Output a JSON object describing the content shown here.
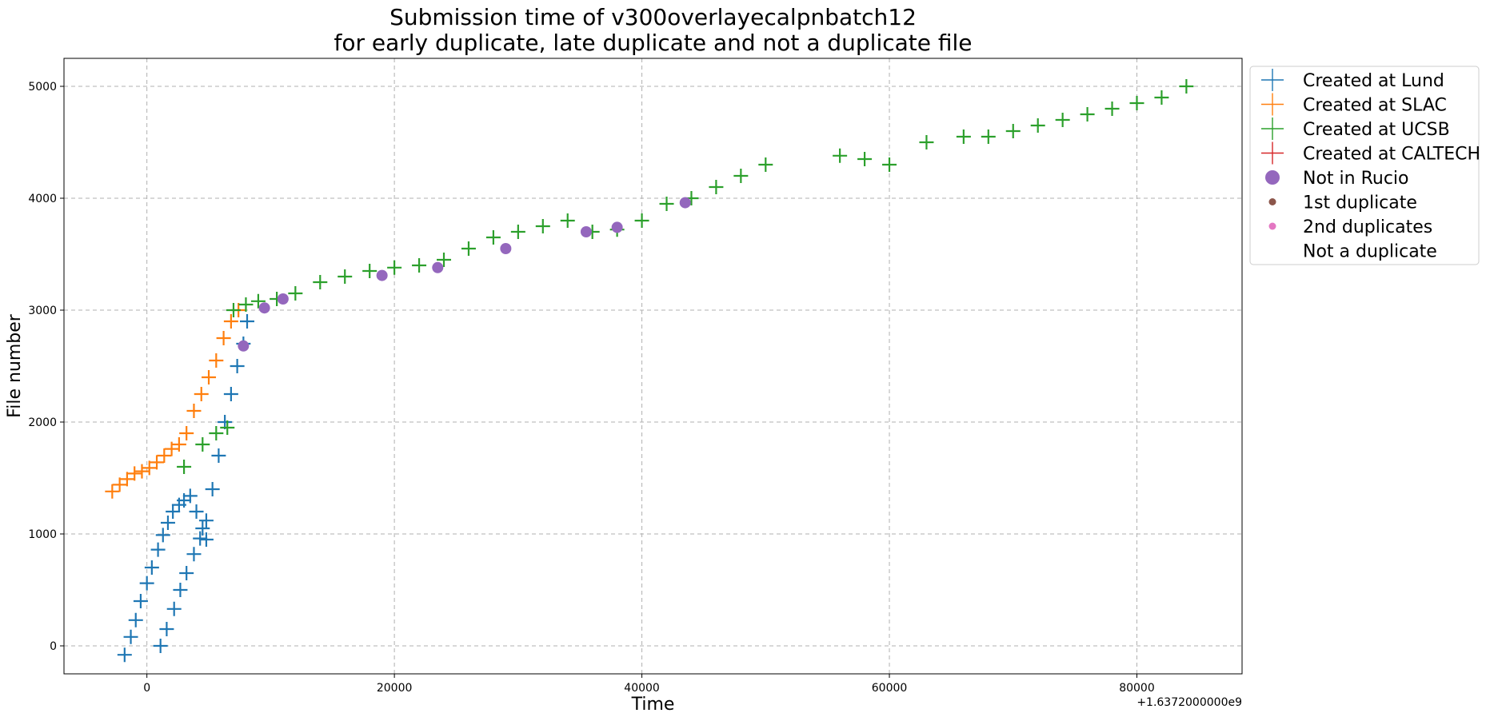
{
  "chart_data": {
    "type": "scatter",
    "title_lines": [
      "Submission time of v300overlayecalpnbatch12",
      "for early duplicate, late duplicate and not a duplicate file"
    ],
    "xlabel": "Time",
    "ylabel": "File number",
    "x_offset_label": "+1.6372000000e9",
    "xlim": [
      -6700,
      88500
    ],
    "ylim": [
      -250,
      5250
    ],
    "x_ticks": [
      0,
      20000,
      40000,
      60000,
      80000
    ],
    "y_ticks": [
      0,
      1000,
      2000,
      3000,
      4000,
      5000
    ],
    "grid": true,
    "legend_position": "outside-top-right",
    "legend": [
      {
        "label": "Created at Lund",
        "marker": "plus",
        "color": "#1f77b4"
      },
      {
        "label": "Created at SLAC",
        "marker": "plus",
        "color": "#ff7f0e"
      },
      {
        "label": "Created at UCSB",
        "marker": "plus",
        "color": "#2ca02c"
      },
      {
        "label": "Created at CALTECH",
        "marker": "plus",
        "color": "#d62728"
      },
      {
        "label": "Not in Rucio",
        "marker": "circle-large",
        "color": "#9467bd"
      },
      {
        "label": "1st duplicate",
        "marker": "circle-small",
        "color": "#8c564b"
      },
      {
        "label": "2nd duplicates",
        "marker": "circle-small",
        "color": "#e377c2"
      },
      {
        "label": "Not a duplicate",
        "marker": "none",
        "color": "#ffffff"
      }
    ],
    "series": [
      {
        "name": "Created at Lund",
        "color": "#1f77b4",
        "x": [
          -1800,
          -1300,
          -900,
          -500,
          0,
          400,
          900,
          1300,
          1700,
          2100,
          2600,
          3000,
          3500,
          4000,
          4500,
          4800,
          1100,
          1600,
          2200,
          2700,
          3200,
          3800,
          4300,
          4800,
          5300,
          5800,
          6300,
          6800,
          7300,
          7800,
          8100
        ],
        "y": [
          -80,
          80,
          230,
          400,
          560,
          700,
          860,
          990,
          1100,
          1200,
          1260,
          1300,
          1340,
          1200,
          1050,
          950,
          0,
          150,
          330,
          500,
          650,
          820,
          960,
          1120,
          1400,
          1700,
          2000,
          2250,
          2500,
          2700,
          2900
        ]
      },
      {
        "name": "Created at SLAC",
        "color": "#ff7f0e",
        "x": [
          -2800,
          -2200,
          -1600,
          -1000,
          -400,
          200,
          800,
          1400,
          2000,
          2600,
          3200,
          3800,
          4400,
          5000,
          5600,
          6200,
          6800,
          7400
        ],
        "y": [
          1380,
          1440,
          1490,
          1540,
          1560,
          1590,
          1640,
          1700,
          1760,
          1800,
          1900,
          2100,
          2250,
          2400,
          2550,
          2750,
          2900,
          3000
        ]
      },
      {
        "name": "Created at UCSB",
        "color": "#2ca02c",
        "x": [
          3000,
          4500,
          5600,
          6500,
          7000,
          8000,
          9000,
          10500,
          12000,
          14000,
          16000,
          18000,
          20000,
          22000,
          24000,
          26000,
          28000,
          30000,
          32000,
          34000,
          36000,
          38000,
          40000,
          42000,
          44000,
          46000,
          48000,
          50000,
          56000,
          58000,
          60000,
          63000,
          66000,
          68000,
          70000,
          72000,
          74000,
          76000,
          78000,
          80000,
          82000,
          84000
        ],
        "y": [
          1600,
          1800,
          1900,
          1950,
          3000,
          3050,
          3080,
          3100,
          3150,
          3250,
          3300,
          3350,
          3380,
          3400,
          3450,
          3550,
          3650,
          3700,
          3750,
          3800,
          3700,
          3720,
          3800,
          3950,
          4000,
          4100,
          4200,
          4300,
          4380,
          4350,
          4300,
          4500,
          4550,
          4550,
          4600,
          4650,
          4700,
          4750,
          4800,
          4850,
          4900,
          5000
        ]
      },
      {
        "name": "Not in Rucio",
        "color": "#9467bd",
        "x": [
          7800,
          9500,
          11000,
          19000,
          23500,
          29000,
          35500,
          38000,
          43500
        ],
        "y": [
          2680,
          3020,
          3100,
          3310,
          3380,
          3550,
          3700,
          3740,
          3960
        ]
      }
    ]
  }
}
